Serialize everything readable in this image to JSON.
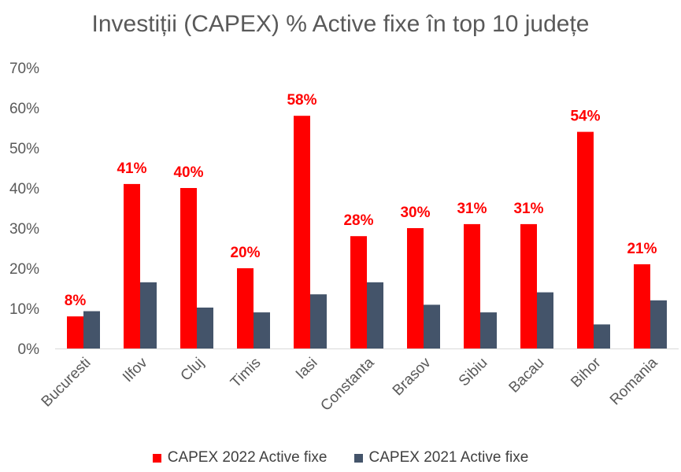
{
  "chart_data": {
    "type": "bar",
    "title": "Investiții (CAPEX) % Active fixe în top 10 județe",
    "xlabel": "",
    "ylabel": "",
    "ylim": [
      0,
      0.7
    ],
    "yticks": [
      0,
      0.1,
      0.2,
      0.3,
      0.4,
      0.5,
      0.6,
      0.7
    ],
    "ytick_labels": [
      "0%",
      "10%",
      "20%",
      "30%",
      "40%",
      "50%",
      "60%",
      "70%"
    ],
    "grid": false,
    "legend_position": "bottom",
    "categories": [
      "Bucuresti",
      "Ilfov",
      "Cluj",
      "Timis",
      "Iasi",
      "Constanta",
      "Brasov",
      "Sibiu",
      "Bacau",
      "Bihor",
      "Romania"
    ],
    "series": [
      {
        "name": "CAPEX 2022 Active fixe",
        "color": "#ff0000",
        "values": [
          0.08,
          0.41,
          0.4,
          0.2,
          0.58,
          0.28,
          0.3,
          0.31,
          0.31,
          0.54,
          0.21
        ],
        "data_labels": [
          "8%",
          "41%",
          "40%",
          "20%",
          "58%",
          "28%",
          "30%",
          "31%",
          "31%",
          "54%",
          "21%"
        ]
      },
      {
        "name": "CAPEX 2021 Active fixe",
        "color": "#44546a",
        "values": [
          0.093,
          0.165,
          0.102,
          0.09,
          0.135,
          0.165,
          0.109,
          0.09,
          0.14,
          0.06,
          0.12
        ]
      }
    ]
  }
}
